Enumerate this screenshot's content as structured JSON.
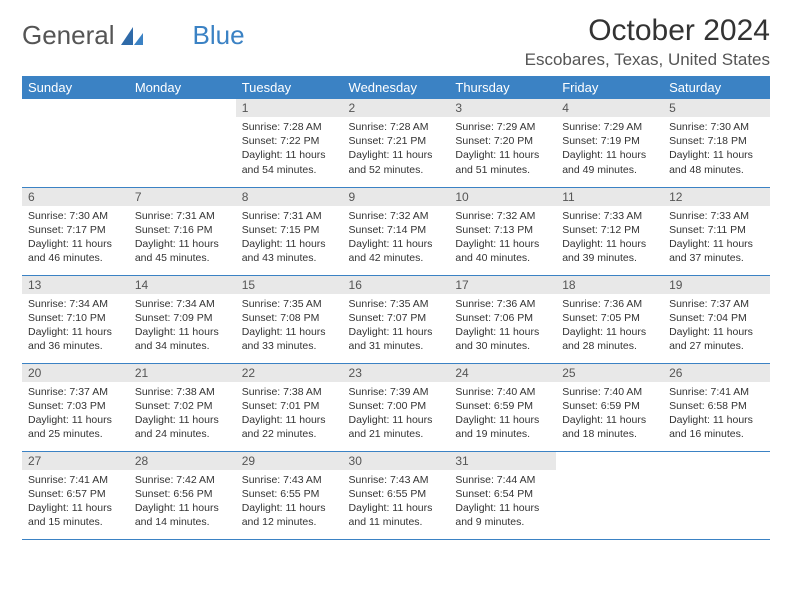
{
  "logo": {
    "word1": "General",
    "word2": "Blue"
  },
  "title": "October 2024",
  "location": "Escobares, Texas, United States",
  "colors": {
    "header_bg": "#3b82c4",
    "header_fg": "#ffffff",
    "daynum_bg": "#e8e8e8",
    "daynum_fg": "#555555",
    "body_bg": "#ffffff",
    "rule": "#3b82c4"
  },
  "day_headers": [
    "Sunday",
    "Monday",
    "Tuesday",
    "Wednesday",
    "Thursday",
    "Friday",
    "Saturday"
  ],
  "weeks": [
    [
      null,
      null,
      {
        "n": "1",
        "sunrise": "7:28 AM",
        "sunset": "7:22 PM",
        "daylight": "11 hours and 54 minutes."
      },
      {
        "n": "2",
        "sunrise": "7:28 AM",
        "sunset": "7:21 PM",
        "daylight": "11 hours and 52 minutes."
      },
      {
        "n": "3",
        "sunrise": "7:29 AM",
        "sunset": "7:20 PM",
        "daylight": "11 hours and 51 minutes."
      },
      {
        "n": "4",
        "sunrise": "7:29 AM",
        "sunset": "7:19 PM",
        "daylight": "11 hours and 49 minutes."
      },
      {
        "n": "5",
        "sunrise": "7:30 AM",
        "sunset": "7:18 PM",
        "daylight": "11 hours and 48 minutes."
      }
    ],
    [
      {
        "n": "6",
        "sunrise": "7:30 AM",
        "sunset": "7:17 PM",
        "daylight": "11 hours and 46 minutes."
      },
      {
        "n": "7",
        "sunrise": "7:31 AM",
        "sunset": "7:16 PM",
        "daylight": "11 hours and 45 minutes."
      },
      {
        "n": "8",
        "sunrise": "7:31 AM",
        "sunset": "7:15 PM",
        "daylight": "11 hours and 43 minutes."
      },
      {
        "n": "9",
        "sunrise": "7:32 AM",
        "sunset": "7:14 PM",
        "daylight": "11 hours and 42 minutes."
      },
      {
        "n": "10",
        "sunrise": "7:32 AM",
        "sunset": "7:13 PM",
        "daylight": "11 hours and 40 minutes."
      },
      {
        "n": "11",
        "sunrise": "7:33 AM",
        "sunset": "7:12 PM",
        "daylight": "11 hours and 39 minutes."
      },
      {
        "n": "12",
        "sunrise": "7:33 AM",
        "sunset": "7:11 PM",
        "daylight": "11 hours and 37 minutes."
      }
    ],
    [
      {
        "n": "13",
        "sunrise": "7:34 AM",
        "sunset": "7:10 PM",
        "daylight": "11 hours and 36 minutes."
      },
      {
        "n": "14",
        "sunrise": "7:34 AM",
        "sunset": "7:09 PM",
        "daylight": "11 hours and 34 minutes."
      },
      {
        "n": "15",
        "sunrise": "7:35 AM",
        "sunset": "7:08 PM",
        "daylight": "11 hours and 33 minutes."
      },
      {
        "n": "16",
        "sunrise": "7:35 AM",
        "sunset": "7:07 PM",
        "daylight": "11 hours and 31 minutes."
      },
      {
        "n": "17",
        "sunrise": "7:36 AM",
        "sunset": "7:06 PM",
        "daylight": "11 hours and 30 minutes."
      },
      {
        "n": "18",
        "sunrise": "7:36 AM",
        "sunset": "7:05 PM",
        "daylight": "11 hours and 28 minutes."
      },
      {
        "n": "19",
        "sunrise": "7:37 AM",
        "sunset": "7:04 PM",
        "daylight": "11 hours and 27 minutes."
      }
    ],
    [
      {
        "n": "20",
        "sunrise": "7:37 AM",
        "sunset": "7:03 PM",
        "daylight": "11 hours and 25 minutes."
      },
      {
        "n": "21",
        "sunrise": "7:38 AM",
        "sunset": "7:02 PM",
        "daylight": "11 hours and 24 minutes."
      },
      {
        "n": "22",
        "sunrise": "7:38 AM",
        "sunset": "7:01 PM",
        "daylight": "11 hours and 22 minutes."
      },
      {
        "n": "23",
        "sunrise": "7:39 AM",
        "sunset": "7:00 PM",
        "daylight": "11 hours and 21 minutes."
      },
      {
        "n": "24",
        "sunrise": "7:40 AM",
        "sunset": "6:59 PM",
        "daylight": "11 hours and 19 minutes."
      },
      {
        "n": "25",
        "sunrise": "7:40 AM",
        "sunset": "6:59 PM",
        "daylight": "11 hours and 18 minutes."
      },
      {
        "n": "26",
        "sunrise": "7:41 AM",
        "sunset": "6:58 PM",
        "daylight": "11 hours and 16 minutes."
      }
    ],
    [
      {
        "n": "27",
        "sunrise": "7:41 AM",
        "sunset": "6:57 PM",
        "daylight": "11 hours and 15 minutes."
      },
      {
        "n": "28",
        "sunrise": "7:42 AM",
        "sunset": "6:56 PM",
        "daylight": "11 hours and 14 minutes."
      },
      {
        "n": "29",
        "sunrise": "7:43 AM",
        "sunset": "6:55 PM",
        "daylight": "11 hours and 12 minutes."
      },
      {
        "n": "30",
        "sunrise": "7:43 AM",
        "sunset": "6:55 PM",
        "daylight": "11 hours and 11 minutes."
      },
      {
        "n": "31",
        "sunrise": "7:44 AM",
        "sunset": "6:54 PM",
        "daylight": "11 hours and 9 minutes."
      },
      null,
      null
    ]
  ],
  "labels": {
    "sunrise": "Sunrise:",
    "sunset": "Sunset:",
    "daylight": "Daylight:"
  }
}
